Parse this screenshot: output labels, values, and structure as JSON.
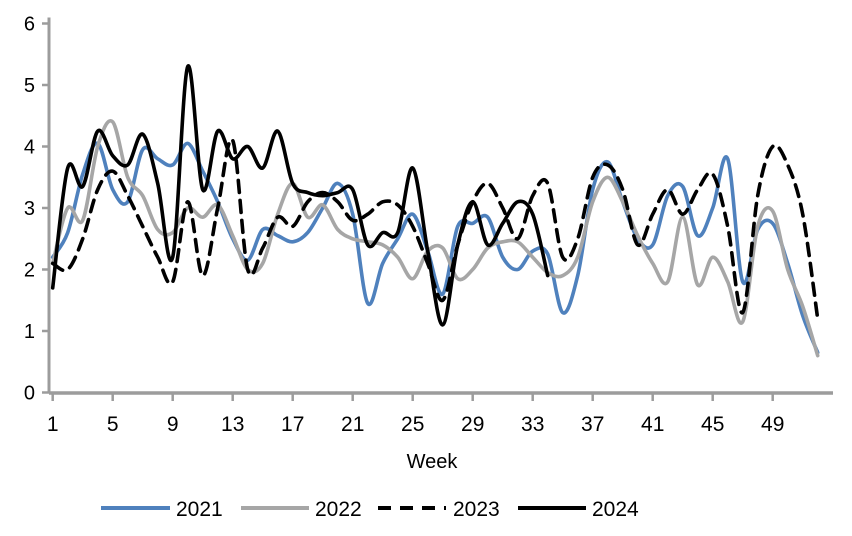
{
  "chart_data": {
    "type": "line",
    "title": "",
    "xlabel": "Week",
    "ylabel": "",
    "ylim": [
      0,
      6
    ],
    "yticks": [
      0,
      1,
      2,
      3,
      4,
      5,
      6
    ],
    "xticks": [
      1,
      5,
      9,
      13,
      17,
      21,
      25,
      29,
      33,
      37,
      41,
      45,
      49
    ],
    "x_weeks": [
      1,
      2,
      3,
      4,
      5,
      6,
      7,
      8,
      9,
      10,
      11,
      12,
      13,
      14,
      15,
      16,
      17,
      18,
      19,
      20,
      21,
      22,
      23,
      24,
      25,
      26,
      27,
      28,
      29,
      30,
      31,
      32,
      33,
      34,
      35,
      36,
      37,
      38,
      39,
      40,
      41,
      42,
      43,
      44,
      45,
      46,
      47,
      48,
      49,
      50,
      51,
      52
    ],
    "grid": false,
    "legend_position": "bottom",
    "axis_color": "#9c9c9c",
    "series": [
      {
        "name": "2021",
        "color": "#4F81BD",
        "dash": null,
        "values": [
          2.2,
          2.6,
          3.55,
          4.05,
          3.3,
          3.1,
          3.95,
          3.8,
          3.7,
          4.05,
          3.6,
          3.1,
          2.5,
          2.15,
          2.65,
          2.55,
          2.45,
          2.6,
          3.0,
          3.4,
          2.9,
          1.45,
          2.1,
          2.5,
          2.9,
          2.3,
          1.6,
          2.7,
          2.75,
          2.85,
          2.2,
          2.0,
          2.3,
          2.25,
          1.3,
          1.9,
          3.3,
          3.75,
          3.1,
          2.5,
          2.4,
          3.2,
          3.35,
          2.55,
          3.0,
          3.8,
          1.8,
          2.65,
          2.75,
          2.1,
          1.25,
          0.65
        ]
      },
      {
        "name": "2022",
        "color": "#A6A6A6",
        "dash": null,
        "values": [
          2.1,
          3.0,
          2.8,
          4.0,
          4.4,
          3.5,
          3.2,
          2.65,
          2.6,
          3.0,
          2.85,
          3.05,
          2.55,
          2.0,
          2.1,
          2.9,
          3.4,
          2.85,
          3.05,
          2.65,
          2.5,
          2.45,
          2.4,
          2.2,
          1.85,
          2.3,
          2.35,
          1.85,
          2.0,
          2.35,
          2.45,
          2.45,
          2.2,
          1.95,
          1.9,
          2.2,
          3.1,
          3.5,
          3.1,
          2.55,
          2.1,
          1.8,
          2.85,
          1.75,
          2.2,
          1.8,
          1.15,
          2.7,
          2.95,
          2.0,
          1.4,
          0.6
        ]
      },
      {
        "name": "2023",
        "color": "#000000",
        "dash": "12,8",
        "values": [
          2.1,
          2.0,
          2.5,
          3.3,
          3.6,
          3.2,
          2.7,
          2.2,
          1.8,
          3.1,
          1.9,
          3.0,
          4.1,
          2.0,
          2.35,
          2.85,
          2.7,
          3.1,
          3.25,
          3.1,
          2.8,
          2.9,
          3.1,
          3.05,
          2.7,
          2.1,
          1.5,
          2.4,
          3.1,
          3.4,
          3.0,
          2.5,
          3.2,
          3.4,
          2.2,
          2.5,
          3.5,
          3.7,
          3.3,
          2.4,
          2.9,
          3.3,
          2.9,
          3.3,
          3.55,
          2.7,
          1.3,
          3.2,
          4.0,
          3.7,
          2.9,
          1.2
        ]
      },
      {
        "name": "2024",
        "color": "#000000",
        "dash": null,
        "values": [
          1.7,
          3.65,
          3.35,
          4.25,
          3.85,
          3.7,
          4.2,
          3.4,
          2.2,
          5.3,
          3.3,
          4.25,
          3.8,
          4.0,
          3.65,
          4.25,
          3.4,
          3.25,
          3.2,
          3.25,
          3.3,
          2.4,
          2.6,
          2.6,
          3.65,
          2.3,
          1.1,
          2.4,
          3.1,
          2.4,
          2.75,
          3.1,
          2.9,
          1.9,
          null,
          null,
          null,
          null,
          null,
          null,
          null,
          null,
          null,
          null,
          null,
          null,
          null,
          null,
          null,
          null,
          null,
          null
        ]
      }
    ]
  }
}
